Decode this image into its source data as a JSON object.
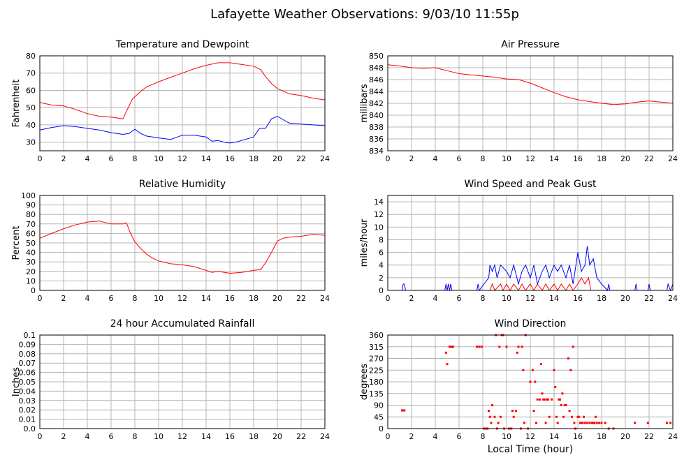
{
  "page_title": "Lafayette Weather Observations: 9/03/10 11:55p",
  "colors": {
    "red": "#ff0000",
    "blue": "#0000ff",
    "grid": "#b4b4b4",
    "frame": "#000000"
  },
  "chart_data": [
    {
      "type": "line",
      "title": "Temperature and Dewpoint",
      "ylabel": "Fahrenheit",
      "xlabel": "",
      "xlim": [
        0,
        24
      ],
      "ylim": [
        25,
        80
      ],
      "xticks": [
        0,
        2,
        4,
        6,
        8,
        10,
        12,
        14,
        16,
        18,
        20,
        22,
        24
      ],
      "yticks": [
        30,
        40,
        50,
        60,
        70,
        80
      ],
      "series": [
        {
          "color": "#ff0000",
          "x": [
            0,
            1,
            2,
            3,
            4,
            5,
            6,
            7,
            7.3,
            7.8,
            8.5,
            9,
            10,
            11,
            12,
            13,
            14,
            15,
            16,
            17,
            18,
            18.6,
            19,
            19.5,
            20,
            21,
            22,
            23,
            24
          ],
          "y": [
            53,
            51.5,
            51,
            49,
            46.5,
            45,
            44.5,
            43.5,
            48,
            55,
            59.5,
            62,
            65,
            67.5,
            70,
            72.5,
            74.5,
            76,
            76,
            75,
            74,
            72,
            68,
            64,
            61,
            58,
            57,
            55.5,
            54.5
          ]
        },
        {
          "color": "#0000ff",
          "x": [
            0,
            1,
            2,
            3,
            4,
            5,
            6,
            7,
            7.5,
            8,
            8.5,
            9,
            10,
            11,
            12,
            13,
            14,
            14.5,
            15,
            15.5,
            16,
            16.5,
            17,
            18,
            18.5,
            19,
            19.5,
            20,
            20.5,
            21,
            22,
            23,
            24
          ],
          "y": [
            37,
            38.5,
            39.5,
            39,
            38,
            37,
            35.5,
            34.5,
            35,
            37.5,
            35,
            33.5,
            32.5,
            31.5,
            34,
            34,
            33,
            30.5,
            31,
            30,
            29.5,
            30,
            31,
            33,
            38,
            38,
            43.5,
            45,
            43,
            41,
            40.5,
            40,
            39.5
          ]
        }
      ]
    },
    {
      "type": "line",
      "title": "Air Pressure",
      "ylabel": "millibars",
      "xlabel": "",
      "xlim": [
        0,
        24
      ],
      "ylim": [
        834,
        850
      ],
      "xticks": [
        0,
        2,
        4,
        6,
        8,
        10,
        12,
        14,
        16,
        18,
        20,
        22,
        24
      ],
      "yticks": [
        834,
        836,
        838,
        840,
        842,
        844,
        846,
        848,
        850
      ],
      "series": [
        {
          "color": "#ff0000",
          "x": [
            0,
            1,
            2,
            3,
            4,
            5,
            6,
            7,
            8,
            9,
            10,
            11,
            12,
            13,
            14,
            15,
            16,
            17,
            18,
            19,
            20,
            21,
            22,
            23,
            24
          ],
          "y": [
            848.5,
            848.3,
            848,
            847.9,
            848,
            847.5,
            847,
            846.8,
            846.6,
            846.4,
            846.1,
            846,
            845.4,
            844.6,
            843.8,
            843.1,
            842.6,
            842.3,
            842,
            841.8,
            841.9,
            842.2,
            842.4,
            842.2,
            842
          ]
        }
      ]
    },
    {
      "type": "line",
      "title": "Relative Humidity",
      "ylabel": "Percent",
      "xlabel": "",
      "xlim": [
        0,
        24
      ],
      "ylim": [
        0,
        100
      ],
      "xticks": [
        0,
        2,
        4,
        6,
        8,
        10,
        12,
        14,
        16,
        18,
        20,
        22,
        24
      ],
      "yticks": [
        0,
        10,
        20,
        30,
        40,
        50,
        60,
        70,
        80,
        90,
        100
      ],
      "series": [
        {
          "color": "#ff0000",
          "x": [
            0,
            1,
            2,
            3,
            4,
            5,
            6,
            7,
            7.3,
            7.6,
            8,
            8.5,
            9,
            9.5,
            10,
            11,
            12,
            13,
            14,
            14.5,
            15,
            16,
            17,
            18,
            18.6,
            19,
            19.5,
            20,
            20.5,
            21,
            22,
            23,
            24
          ],
          "y": [
            55,
            60,
            65,
            69,
            72,
            73,
            70,
            70,
            71,
            61,
            51,
            44,
            38,
            34,
            31,
            28,
            27,
            25,
            21,
            19,
            20,
            18,
            19,
            21,
            22,
            29,
            40,
            52,
            55,
            56,
            57,
            59,
            58
          ]
        }
      ]
    },
    {
      "type": "line",
      "title": "Wind Speed and Peak Gust",
      "ylabel": "miles/hour",
      "xlabel": "",
      "xlim": [
        0,
        24
      ],
      "ylim": [
        0,
        15
      ],
      "xticks": [
        0,
        2,
        4,
        6,
        8,
        10,
        12,
        14,
        16,
        18,
        20,
        22,
        24
      ],
      "yticks": [
        0,
        2,
        4,
        6,
        8,
        10,
        12,
        14
      ],
      "series": [
        {
          "color": "#0000ff",
          "x": [
            0,
            1.2,
            1.3,
            1.4,
            1.5,
            4.8,
            4.9,
            5,
            5.1,
            5.2,
            5.3,
            5.4,
            7.5,
            7.6,
            7.7,
            8.5,
            8.6,
            8.8,
            9,
            9.2,
            9.5,
            10,
            10.3,
            10.6,
            11,
            11.3,
            11.6,
            12,
            12.3,
            12.6,
            13,
            13.3,
            13.6,
            14,
            14.3,
            14.6,
            15,
            15.3,
            15.6,
            16,
            16.3,
            16.6,
            16.8,
            17,
            17.3,
            17.6,
            18,
            18.5,
            18.6,
            18.7,
            19,
            20.8,
            20.9,
            21,
            21.9,
            22,
            22.1,
            23.5,
            23.6,
            23.8,
            24
          ],
          "y": [
            0,
            0,
            1,
            1,
            0,
            0,
            1,
            0,
            1,
            0,
            1,
            0,
            0,
            1,
            0,
            2,
            4,
            3,
            4,
            2,
            4,
            3,
            2,
            4,
            1,
            3,
            4,
            2,
            4,
            1,
            3,
            4,
            2,
            4,
            3,
            4,
            2,
            4,
            1,
            6,
            3,
            4,
            7,
            4,
            5,
            2,
            1,
            0,
            1,
            0,
            0,
            0,
            1,
            0,
            0,
            1,
            0,
            0,
            1,
            0,
            1
          ]
        },
        {
          "color": "#ff0000",
          "x": [
            0,
            8.6,
            8.8,
            9,
            9.5,
            9.7,
            10,
            10.3,
            10.6,
            11,
            11.3,
            11.6,
            12,
            12.3,
            12.6,
            13,
            13.3,
            13.6,
            14,
            14.3,
            14.6,
            15,
            15.3,
            15.6,
            16,
            16.3,
            16.6,
            16.9,
            17.1,
            17.4,
            24
          ],
          "y": [
            0,
            0,
            1,
            0,
            1,
            0,
            1,
            0,
            1,
            0,
            1,
            0,
            1,
            0,
            1,
            0,
            1,
            0,
            1,
            0,
            1,
            0,
            1,
            0,
            1,
            2,
            1,
            2,
            0,
            0,
            0
          ]
        }
      ]
    },
    {
      "type": "line",
      "title": "24 hour Accumulated Rainfall",
      "ylabel": "Inches",
      "xlabel": "",
      "xlim": [
        0,
        24
      ],
      "ylim": [
        0,
        0.1
      ],
      "xticks": [
        0,
        2,
        4,
        6,
        8,
        10,
        12,
        14,
        16,
        18,
        20,
        22,
        24
      ],
      "yticks": [
        0.0,
        0.01,
        0.02,
        0.03,
        0.04,
        0.05,
        0.06,
        0.07,
        0.08,
        0.09,
        0.1
      ],
      "ytick_labels": [
        "0.0",
        "0.01",
        "0.02",
        "0.03",
        "0.04",
        "0.05",
        "0.06",
        "0.07",
        "0.08",
        "0.09",
        "0.1"
      ],
      "series": [
        {
          "color": "#ff0000",
          "x": [
            0,
            24
          ],
          "y": [
            0,
            0
          ]
        }
      ]
    },
    {
      "type": "scatter",
      "title": "Wind Direction",
      "ylabel": "degrees",
      "xlabel": "Local Time (hour)",
      "xlim": [
        0,
        24
      ],
      "ylim": [
        0,
        360
      ],
      "xticks": [
        0,
        2,
        4,
        6,
        8,
        10,
        12,
        14,
        16,
        18,
        20,
        22,
        24
      ],
      "yticks": [
        0,
        45,
        90,
        135,
        180,
        225,
        270,
        315,
        360
      ],
      "series": [
        {
          "color": "#ff0000",
          "x": [
            1.2,
            1.3,
            1.4,
            4.9,
            5.0,
            5.2,
            5.3,
            5.4,
            5.5,
            7.5,
            7.7,
            7.9,
            8.1,
            8.3,
            8.6,
            8.8,
            9.0,
            9.2,
            9.4,
            9.6,
            9.8,
            10.0,
            10.2,
            10.4,
            10.6,
            10.8,
            11.0,
            11.2,
            11.4,
            11.6,
            11.8,
            12.0,
            12.2,
            12.4,
            12.6,
            12.8,
            13.0,
            13.2,
            13.4,
            13.6,
            13.8,
            14.0,
            14.2,
            14.4,
            14.6,
            14.8,
            15.0,
            15.2,
            15.4,
            15.6,
            15.8,
            16.0,
            16.2,
            16.4,
            16.6,
            16.8,
            17.0,
            17.2,
            17.4,
            17.6,
            17.8,
            18.0,
            18.3,
            18.6,
            19.0,
            20.8,
            21.9,
            23.5,
            23.8,
            8.5,
            8.7,
            9.3,
            9.5,
            10.5,
            11.5,
            12.3,
            12.5,
            13.3,
            13.5,
            14.3,
            14.5,
            15.3,
            15.5,
            16.3,
            16.5,
            17.3,
            17.5,
            9.1,
            10.9,
            12.9,
            14.1,
            14.9,
            15.7,
            8.4,
            9.7,
            11.3,
            13.1,
            14.7,
            16.1
          ],
          "y": [
            70,
            70,
            70,
            292,
            248,
            315,
            315,
            315,
            315,
            315,
            315,
            315,
            0,
            0,
            45,
            90,
            45,
            0,
            315,
            360,
            0,
            315,
            0,
            0,
            45,
            68,
            315,
            0,
            225,
            360,
            0,
            180,
            225,
            180,
            112,
            112,
            135,
            112,
            112,
            45,
            112,
            225,
            45,
            112,
            90,
            45,
            90,
            270,
            225,
            315,
            0,
            45,
            22,
            22,
            22,
            22,
            22,
            22,
            22,
            22,
            22,
            22,
            22,
            0,
            0,
            22,
            22,
            22,
            22,
            68,
            22,
            22,
            45,
            68,
            22,
            68,
            22,
            22,
            112,
            22,
            112,
            68,
            45,
            22,
            45,
            22,
            45,
            360,
            292,
            248,
            160,
            90,
            22,
            0,
            360,
            315,
            112,
            135,
            45
          ]
        }
      ]
    }
  ]
}
